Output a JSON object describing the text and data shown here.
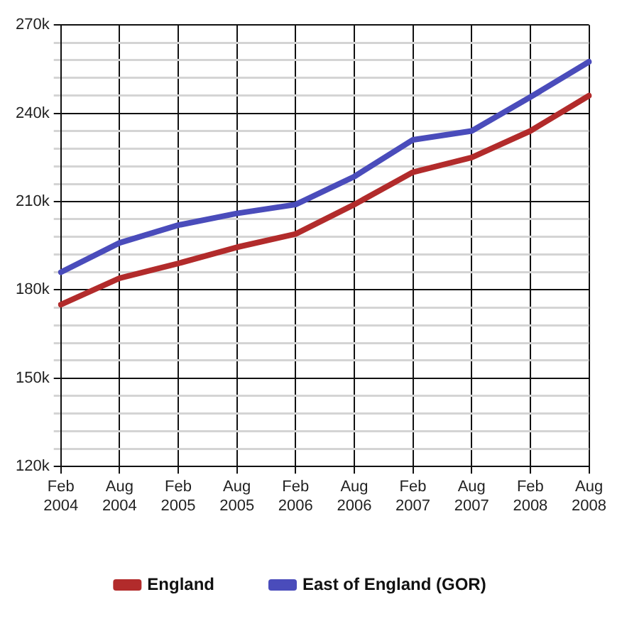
{
  "chart_data": {
    "type": "line",
    "categories": [
      "Feb 2004",
      "Aug 2004",
      "Feb 2005",
      "Aug 2005",
      "Feb 2006",
      "Aug 2006",
      "Feb 2007",
      "Aug 2007",
      "Feb 2008",
      "Aug 2008"
    ],
    "series": [
      {
        "name": "England",
        "color": "#b22b2b",
        "values": [
          175000,
          184000,
          189000,
          194500,
          199000,
          209000,
          220000,
          225000,
          234000,
          246000
        ]
      },
      {
        "name": "East of England (GOR)",
        "color": "#4a4cbb",
        "values": [
          186000,
          196000,
          202000,
          206000,
          209000,
          218500,
          231000,
          234000,
          245500,
          257500
        ]
      }
    ],
    "ylim": [
      120000,
      270000
    ],
    "yticks": [
      {
        "value": 120000,
        "label": "120k"
      },
      {
        "value": 126000,
        "label": null
      },
      {
        "value": 132000,
        "label": null
      },
      {
        "value": 138000,
        "label": null
      },
      {
        "value": 144000,
        "label": null
      },
      {
        "value": 150000,
        "label": "150k"
      },
      {
        "value": 156000,
        "label": null
      },
      {
        "value": 162000,
        "label": null
      },
      {
        "value": 168000,
        "label": null
      },
      {
        "value": 174000,
        "label": null
      },
      {
        "value": 180000,
        "label": "180k"
      },
      {
        "value": 186000,
        "label": null
      },
      {
        "value": 192000,
        "label": null
      },
      {
        "value": 198000,
        "label": null
      },
      {
        "value": 204000,
        "label": null
      },
      {
        "value": 210000,
        "label": "210k"
      },
      {
        "value": 216000,
        "label": null
      },
      {
        "value": 222000,
        "label": null
      },
      {
        "value": 228000,
        "label": null
      },
      {
        "value": 234000,
        "label": null
      },
      {
        "value": 240000,
        "label": "240k"
      },
      {
        "value": 246000,
        "label": null
      },
      {
        "value": 252000,
        "label": null
      },
      {
        "value": 258000,
        "label": null
      },
      {
        "value": 264000,
        "label": null
      },
      {
        "value": 270000,
        "label": "270k"
      }
    ],
    "grid": true,
    "legend": "bottom",
    "marker": "none",
    "line_style": "solid"
  }
}
